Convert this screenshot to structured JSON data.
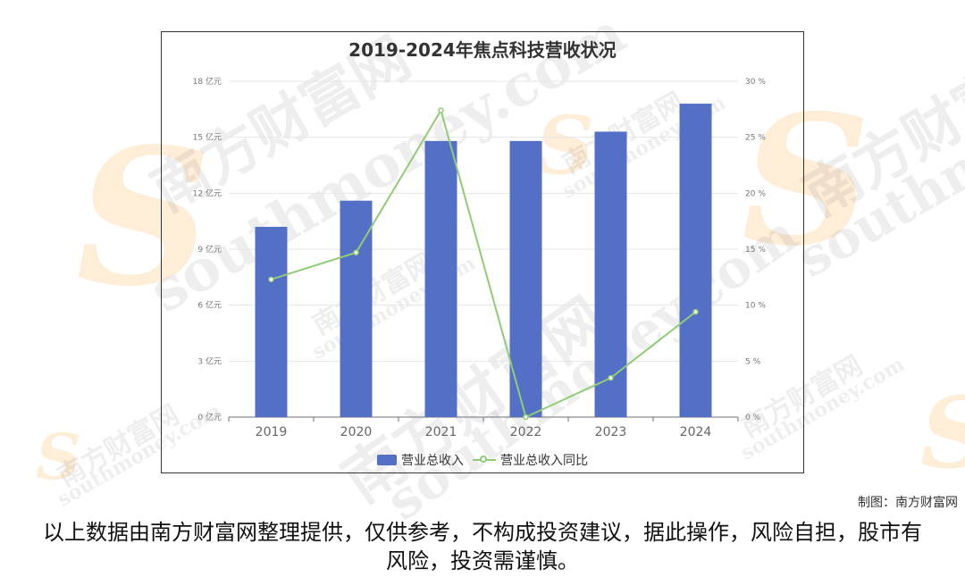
{
  "chart_data": {
    "type": "bar+line",
    "title": "2019-2024年焦点科技营收状况",
    "categories": [
      "2019",
      "2020",
      "2021",
      "2022",
      "2023",
      "2024"
    ],
    "series": [
      {
        "name": "营业总收入",
        "type": "bar",
        "axis": "left",
        "unit": "亿元",
        "values": [
          10.2,
          11.6,
          14.8,
          14.8,
          15.3,
          16.8
        ],
        "color": "#5470c6"
      },
      {
        "name": "营业总收入同比",
        "type": "line",
        "axis": "right",
        "unit": "%",
        "values": [
          12.3,
          14.7,
          27.4,
          0.0,
          3.5,
          9.4
        ],
        "color": "#91cc75"
      }
    ],
    "y_left": {
      "ticks": [
        "0 亿元",
        "3 亿元",
        "6 亿元",
        "9 亿元",
        "12 亿元",
        "15 亿元",
        "18 亿元"
      ],
      "range": [
        0,
        18
      ]
    },
    "y_right": {
      "ticks": [
        "0 %",
        "5 %",
        "10 %",
        "15 %",
        "20 %",
        "25 %",
        "30 %"
      ],
      "range": [
        0,
        30
      ]
    },
    "grid": true,
    "legend": "bottom-center"
  },
  "credit": "制图：南方财富网",
  "disclaimer": "以上数据由南方财富网整理提供，仅供参考，不构成投资建议，据此操作，风险自担，股市有风险，投资需谨慎。",
  "watermark": {
    "brand": "南方财富网",
    "domain": "southmoney.com",
    "letter": "S"
  }
}
